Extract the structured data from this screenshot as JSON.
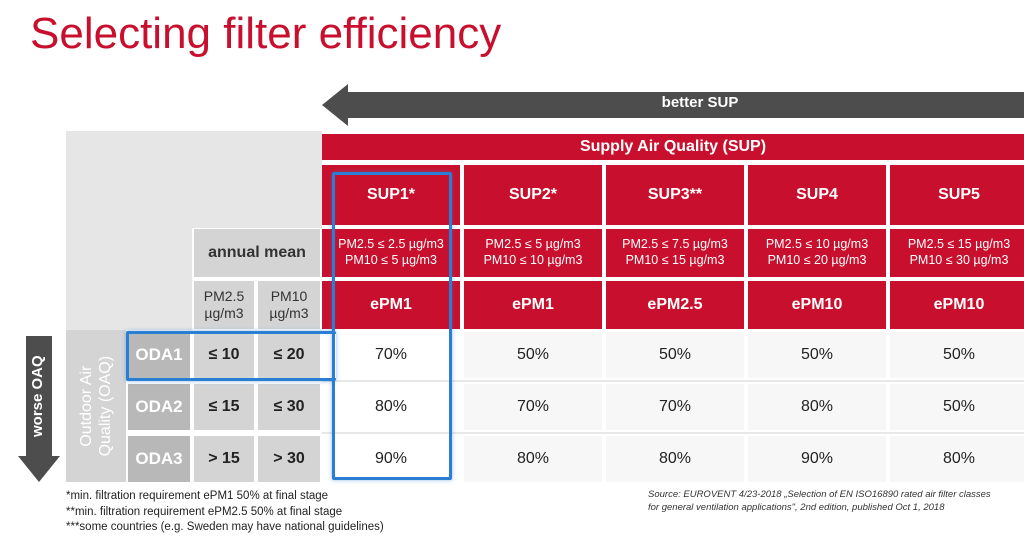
{
  "title": "Selecting filter efficiency",
  "better_sup_label": "better SUP",
  "worse_oaq_label": "worse OAQ",
  "sup_header": "Supply Air Quality (SUP)",
  "annual_mean_label": "annual mean",
  "units": [
    [
      "PM2.5",
      "µg/m3"
    ],
    [
      "PM10",
      "µg/m3"
    ]
  ],
  "oaq_side_label": [
    "Outdoor Air",
    "Quality (OAQ)"
  ],
  "sup_columns": [
    {
      "name": "SUP1*",
      "range1": "PM2.5 ≤ 2.5 µg/m3",
      "range2": "PM10 ≤ 5 µg/m3",
      "filter": "ePM1"
    },
    {
      "name": "SUP2*",
      "range1": "PM2.5 ≤ 5 µg/m3",
      "range2": "PM10 ≤ 10 µg/m3",
      "filter": "ePM1"
    },
    {
      "name": "SUP3**",
      "range1": "PM2.5 ≤ 7.5 µg/m3",
      "range2": "PM10 ≤ 15 µg/m3",
      "filter": "ePM2.5"
    },
    {
      "name": "SUP4",
      "range1": "PM2.5 ≤ 10 µg/m3",
      "range2": "PM10 ≤ 20 µg/m3",
      "filter": "ePM10"
    },
    {
      "name": "SUP5",
      "range1": "PM2.5 ≤ 15 µg/m3",
      "range2": "PM10 ≤ 30 µg/m3",
      "filter": "ePM10"
    }
  ],
  "oda_rows": [
    {
      "label": "ODA1",
      "pm25": "≤ 10",
      "pm10": "≤ 20",
      "values": [
        "70%",
        "50%",
        "50%",
        "50%",
        "50%"
      ]
    },
    {
      "label": "ODA2",
      "pm25": "≤ 15",
      "pm10": "≤ 30",
      "values": [
        "80%",
        "70%",
        "70%",
        "80%",
        "50%"
      ]
    },
    {
      "label": "ODA3",
      "pm25": "> 15",
      "pm10": "> 30",
      "values": [
        "90%",
        "80%",
        "80%",
        "90%",
        "80%"
      ]
    }
  ],
  "footnotes": [
    "*min. filtration requirement ePM1 50% at final stage",
    "**min. filtration requirement ePM2.5 50% at final stage",
    "***some countries (e.g. Sweden may have national guidelines)"
  ],
  "source": [
    "Source: EUROVENT 4/23-2018 „Selection of EN ISO16890 rated air filter classes",
    "for general ventilation applications\", 2nd edition, published Oct 1, 2018"
  ],
  "colors": {
    "accent_red": "#c8102e",
    "arrow_grey": "#4d4d4d",
    "highlight_blue": "#2a7fd4"
  }
}
